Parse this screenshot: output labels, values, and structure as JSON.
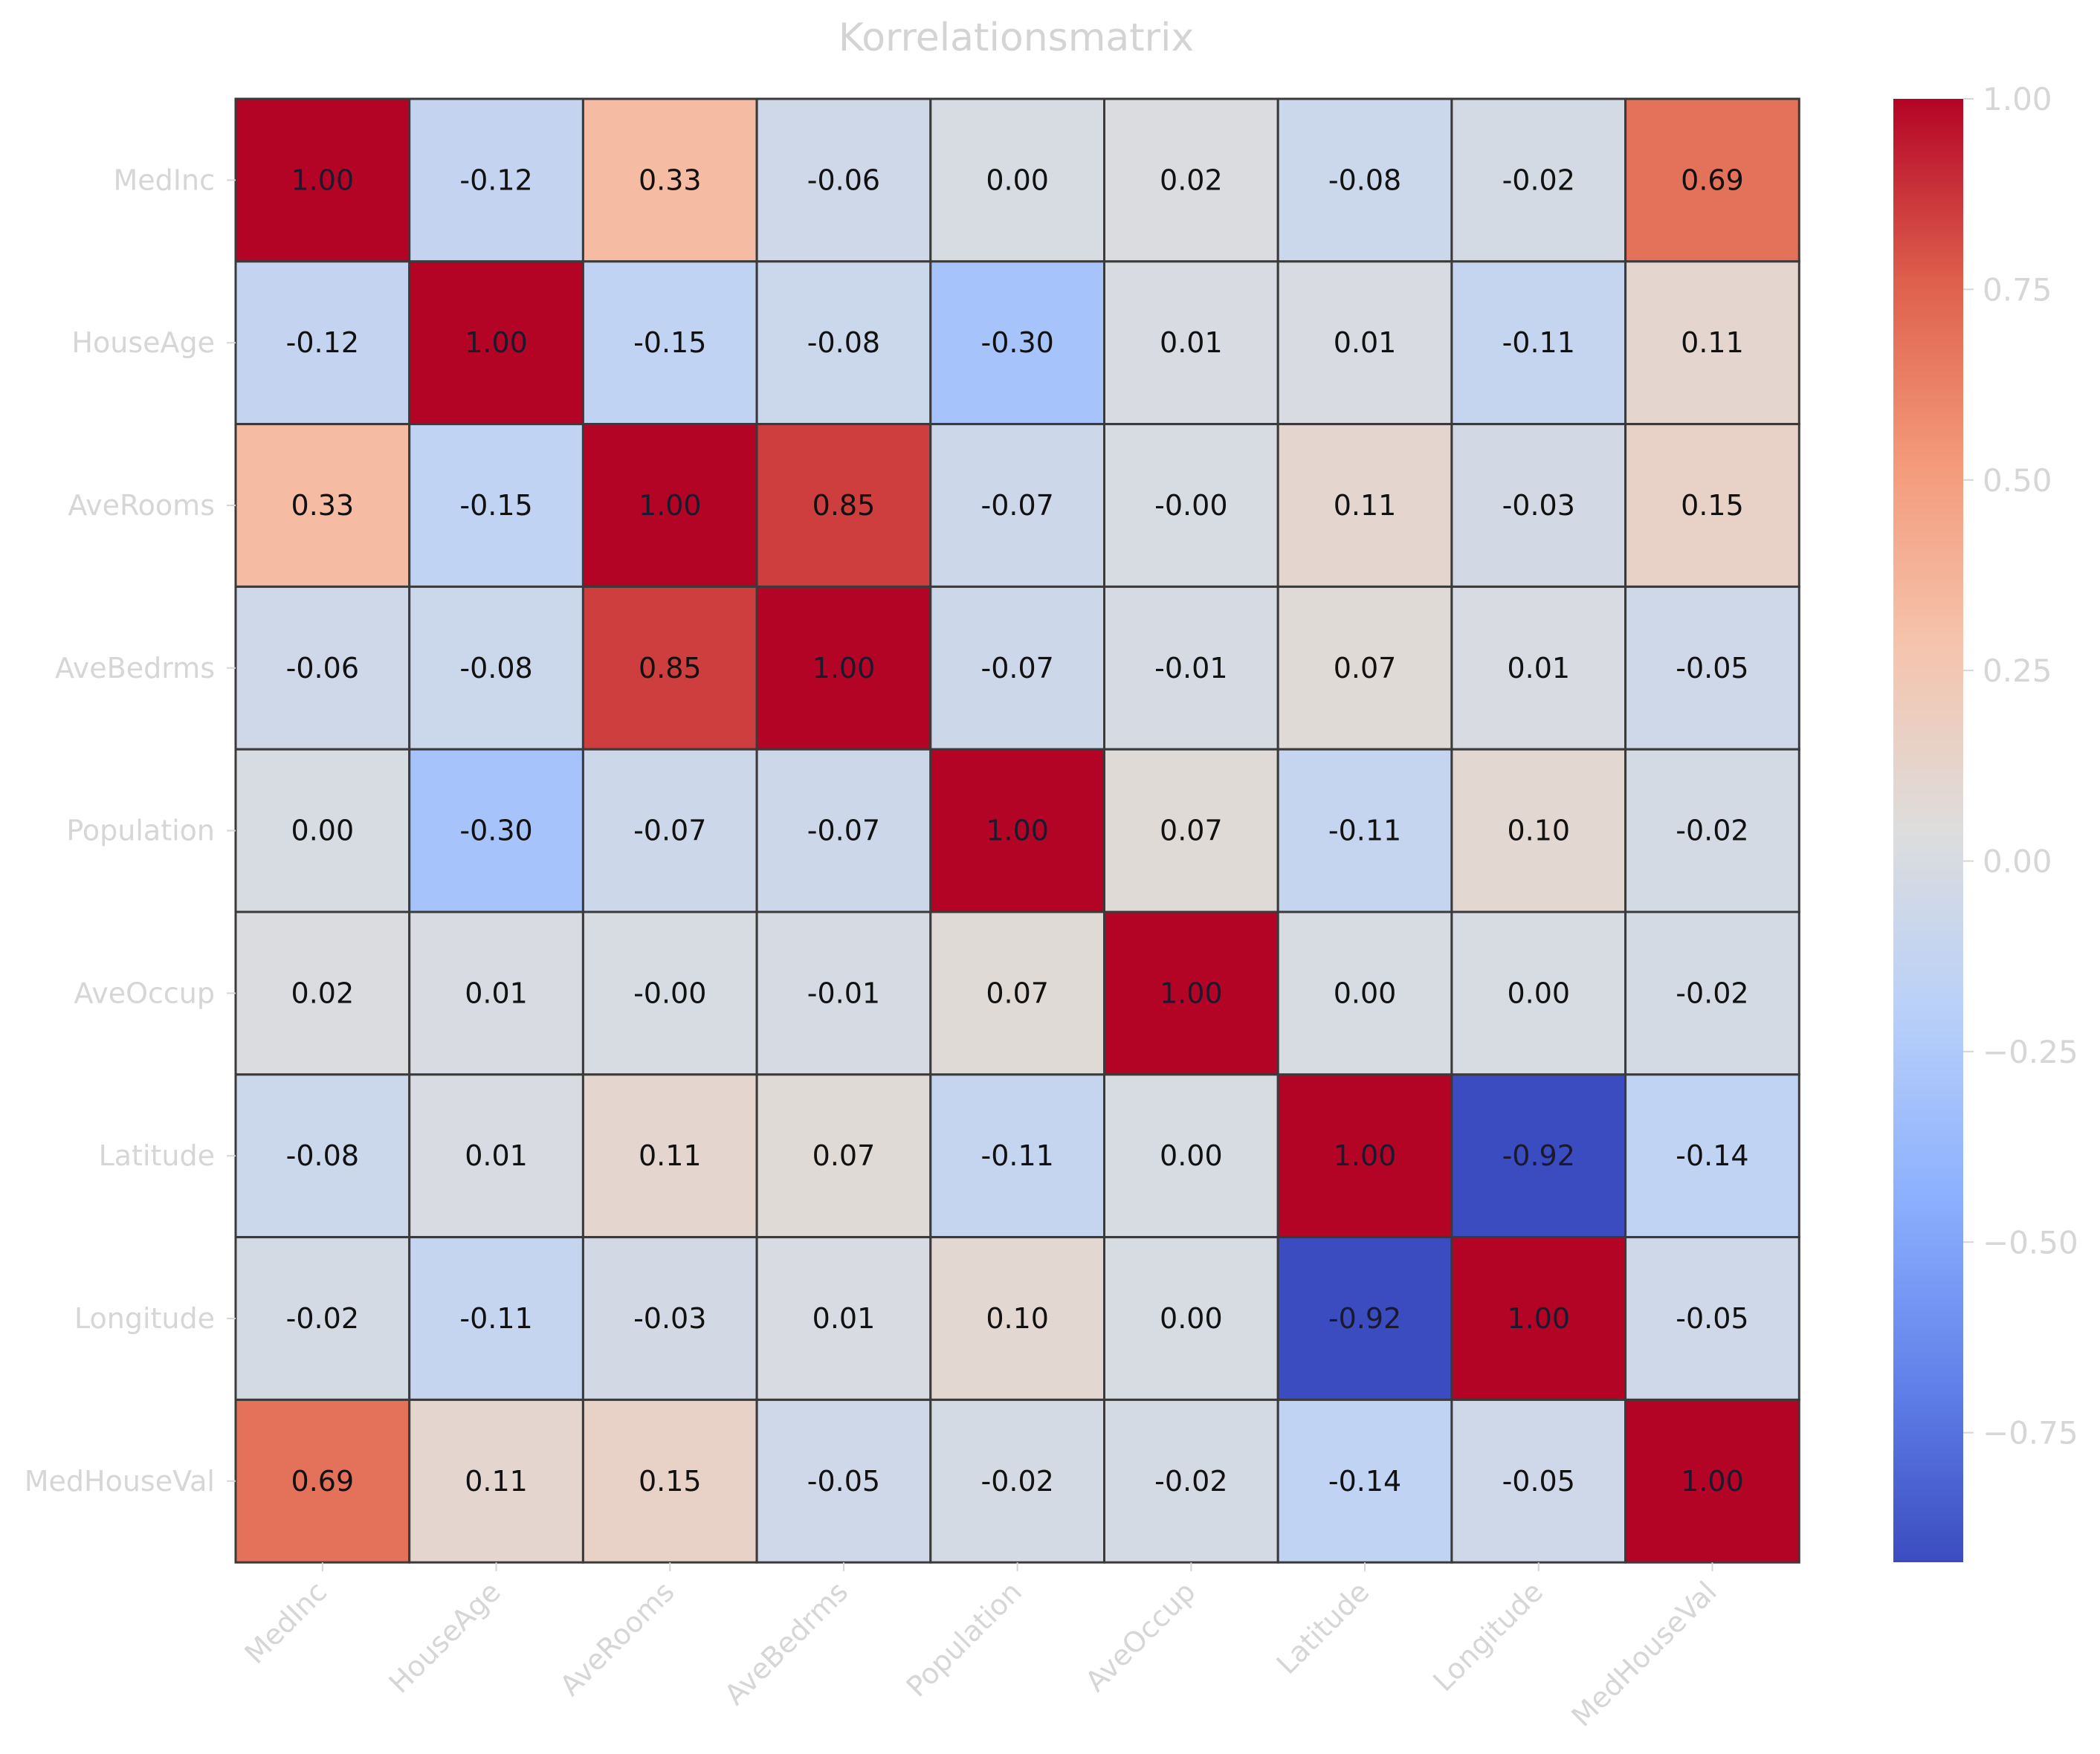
{
  "chart_data": {
    "type": "heatmap",
    "title": "Korrelationsmatrix",
    "xlabel": "",
    "ylabel": "",
    "colormap": "coolwarm",
    "vmin": -0.92,
    "vmax": 1.0,
    "labels": [
      "MedInc",
      "HouseAge",
      "AveRooms",
      "AveBedrms",
      "Population",
      "AveOccup",
      "Latitude",
      "Longitude",
      "MedHouseVal"
    ],
    "matrix": [
      [
        1.0,
        -0.12,
        0.33,
        -0.06,
        0.0,
        0.02,
        -0.08,
        -0.02,
        0.69
      ],
      [
        -0.12,
        1.0,
        -0.15,
        -0.08,
        -0.3,
        0.01,
        0.01,
        -0.11,
        0.11
      ],
      [
        0.33,
        -0.15,
        1.0,
        0.85,
        -0.07,
        -0.0,
        0.11,
        -0.03,
        0.15
      ],
      [
        -0.06,
        -0.08,
        0.85,
        1.0,
        -0.07,
        -0.01,
        0.07,
        0.01,
        -0.05
      ],
      [
        0.0,
        -0.3,
        -0.07,
        -0.07,
        1.0,
        0.07,
        -0.11,
        0.1,
        -0.02
      ],
      [
        0.02,
        0.01,
        -0.0,
        -0.01,
        0.07,
        1.0,
        0.0,
        0.0,
        -0.02
      ],
      [
        -0.08,
        0.01,
        0.11,
        0.07,
        -0.11,
        0.0,
        1.0,
        -0.92,
        -0.14
      ],
      [
        -0.02,
        -0.11,
        -0.03,
        0.01,
        0.1,
        0.0,
        -0.92,
        1.0,
        -0.05
      ],
      [
        0.69,
        0.11,
        0.15,
        -0.05,
        -0.02,
        -0.02,
        -0.14,
        -0.05,
        1.0
      ]
    ],
    "cell_labels": [
      [
        "1.00",
        "-0.12",
        "0.33",
        "-0.06",
        "0.00",
        "0.02",
        "-0.08",
        "-0.02",
        "0.69"
      ],
      [
        "-0.12",
        "1.00",
        "-0.15",
        "-0.08",
        "-0.30",
        "0.01",
        "0.01",
        "-0.11",
        "0.11"
      ],
      [
        "0.33",
        "-0.15",
        "1.00",
        "0.85",
        "-0.07",
        "-0.00",
        "0.11",
        "-0.03",
        "0.15"
      ],
      [
        "-0.06",
        "-0.08",
        "0.85",
        "1.00",
        "-0.07",
        "-0.01",
        "0.07",
        "0.01",
        "-0.05"
      ],
      [
        "0.00",
        "-0.30",
        "-0.07",
        "-0.07",
        "1.00",
        "0.07",
        "-0.11",
        "0.10",
        "-0.02"
      ],
      [
        "0.02",
        "0.01",
        "-0.00",
        "-0.01",
        "0.07",
        "1.00",
        "0.00",
        "0.00",
        "-0.02"
      ],
      [
        "-0.08",
        "0.01",
        "0.11",
        "0.07",
        "-0.11",
        "0.00",
        "1.00",
        "-0.92",
        "-0.14"
      ],
      [
        "-0.02",
        "-0.11",
        "-0.03",
        "0.01",
        "0.10",
        "0.00",
        "-0.92",
        "1.00",
        "-0.05"
      ],
      [
        "0.69",
        "0.11",
        "0.15",
        "-0.05",
        "-0.02",
        "-0.02",
        "-0.14",
        "-0.05",
        "1.00"
      ]
    ],
    "colorbar": {
      "ticks": [
        1.0,
        0.75,
        0.5,
        0.25,
        0.0,
        -0.25,
        -0.5,
        -0.75
      ],
      "tick_labels": [
        "1.00",
        "0.75",
        "0.50",
        "0.25",
        "0.00",
        "−0.25",
        "−0.50",
        "−0.75"
      ]
    },
    "legend": "colorbar right",
    "grid": false
  }
}
